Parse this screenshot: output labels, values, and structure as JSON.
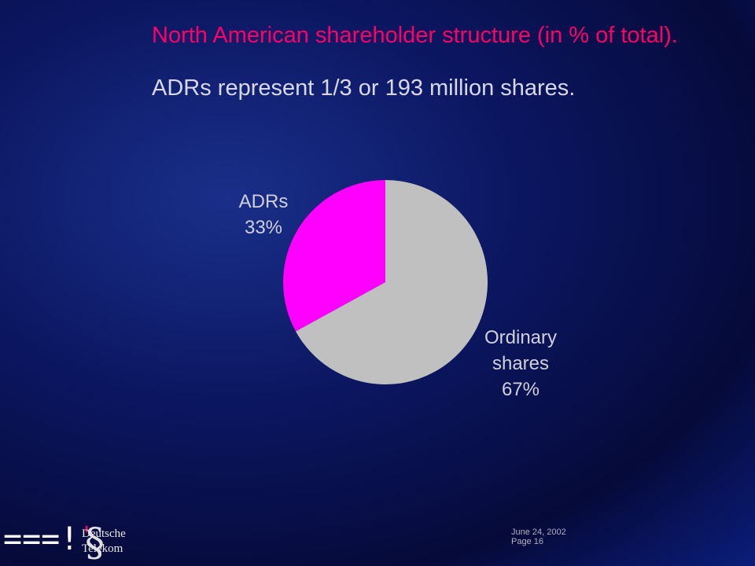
{
  "chart_data": {
    "type": "pie",
    "title": "North American shareholder structure (in % of total).",
    "subtitle": "ADRs represent 1/3 or 193 million shares.",
    "categories": [
      "ADRs",
      "Ordinary shares"
    ],
    "values": [
      33,
      67
    ],
    "value_labels": [
      "33%",
      "67%"
    ],
    "colors": [
      "#ff00ff",
      "#c0c0c0"
    ]
  },
  "footer": {
    "date": "June 24, 2002",
    "page": "Page  16",
    "logo_mark": "===!",
    "logo_accent": "'",
    "logo_symbol": "§",
    "logo_line1": "Deutsche",
    "logo_line2": "Telekom"
  }
}
